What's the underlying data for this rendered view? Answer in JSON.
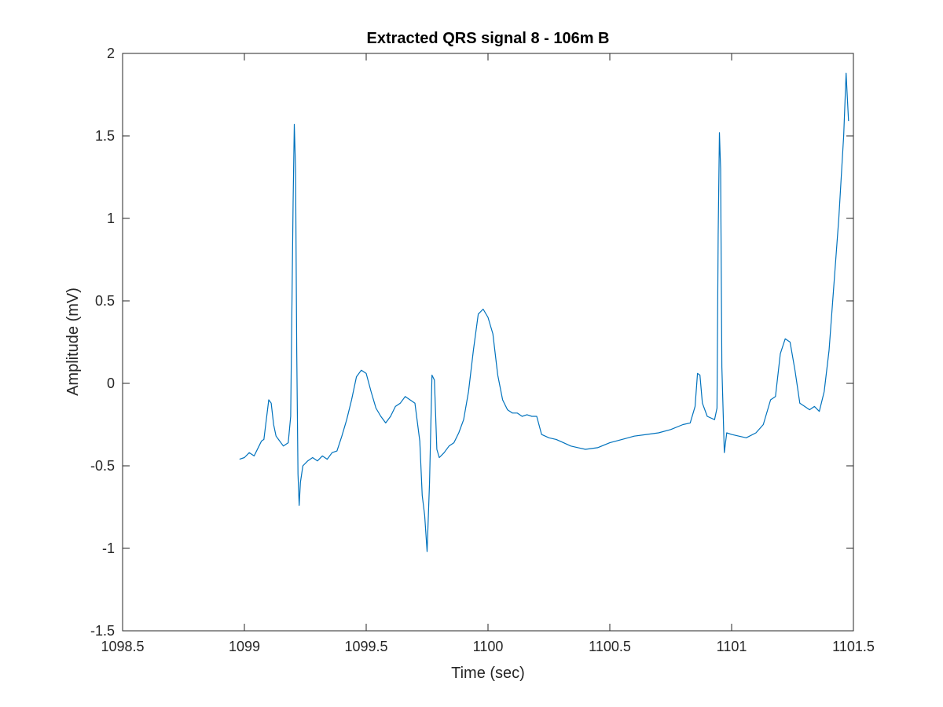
{
  "chart_data": {
    "type": "line",
    "title": "Extracted QRS signal 8 - 106m B",
    "xlabel": "Time (sec)",
    "ylabel": "Amplitude (mV)",
    "xlim": [
      1098.5,
      1101.5
    ],
    "ylim": [
      -1.5,
      2
    ],
    "xticks": [
      1098.5,
      1099,
      1099.5,
      1100,
      1100.5,
      1101,
      1101.5
    ],
    "xtick_labels": [
      "1098.5",
      "1099",
      "1099.5",
      "1100",
      "1100.5",
      "1101",
      "1101.5"
    ],
    "yticks": [
      -1.5,
      -1,
      -0.5,
      0,
      0.5,
      1,
      1.5,
      2
    ],
    "ytick_labels": [
      "-1.5",
      "-1",
      "-0.5",
      "0",
      "0.5",
      "1",
      "1.5",
      "2"
    ],
    "grid": false,
    "box": true,
    "series": [
      {
        "color": "#0072BD",
        "x": [
          1098.98,
          1099.0,
          1099.02,
          1099.04,
          1099.06,
          1099.07,
          1099.08,
          1099.09,
          1099.1,
          1099.11,
          1099.12,
          1099.13,
          1099.14,
          1099.16,
          1099.18,
          1099.19,
          1099.2,
          1099.205,
          1099.21,
          1099.215,
          1099.22,
          1099.225,
          1099.23,
          1099.24,
          1099.26,
          1099.28,
          1099.3,
          1099.32,
          1099.34,
          1099.36,
          1099.38,
          1099.4,
          1099.42,
          1099.44,
          1099.46,
          1099.48,
          1099.5,
          1099.52,
          1099.54,
          1099.56,
          1099.58,
          1099.6,
          1099.62,
          1099.64,
          1099.66,
          1099.68,
          1099.7,
          1099.72,
          1099.73,
          1099.74,
          1099.75,
          1099.76,
          1099.77,
          1099.78,
          1099.79,
          1099.8,
          1099.82,
          1099.84,
          1099.86,
          1099.88,
          1099.9,
          1099.92,
          1099.94,
          1099.96,
          1099.98,
          1100.0,
          1100.02,
          1100.04,
          1100.06,
          1100.08,
          1100.1,
          1100.12,
          1100.14,
          1100.16,
          1100.18,
          1100.2,
          1100.22,
          1100.25,
          1100.28,
          1100.31,
          1100.34,
          1100.37,
          1100.4,
          1100.45,
          1100.5,
          1100.55,
          1100.6,
          1100.65,
          1100.7,
          1100.75,
          1100.8,
          1100.83,
          1100.85,
          1100.86,
          1100.87,
          1100.88,
          1100.9,
          1100.93,
          1100.94,
          1100.945,
          1100.95,
          1100.955,
          1100.96,
          1100.97,
          1100.98,
          1101.0,
          1101.03,
          1101.06,
          1101.1,
          1101.13,
          1101.16,
          1101.18,
          1101.2,
          1101.22,
          1101.24,
          1101.26,
          1101.28,
          1101.3,
          1101.32,
          1101.34,
          1101.36,
          1101.38,
          1101.4,
          1101.42,
          1101.44,
          1101.46,
          1101.47,
          1101.48
        ],
        "y": [
          -0.46,
          -0.45,
          -0.42,
          -0.44,
          -0.38,
          -0.35,
          -0.34,
          -0.22,
          -0.1,
          -0.12,
          -0.25,
          -0.32,
          -0.34,
          -0.38,
          -0.36,
          -0.2,
          1.1,
          1.57,
          1.3,
          0.2,
          -0.55,
          -0.74,
          -0.6,
          -0.5,
          -0.47,
          -0.45,
          -0.47,
          -0.44,
          -0.46,
          -0.42,
          -0.41,
          -0.32,
          -0.22,
          -0.1,
          0.04,
          0.08,
          0.06,
          -0.05,
          -0.15,
          -0.2,
          -0.24,
          -0.2,
          -0.14,
          -0.12,
          -0.08,
          -0.1,
          -0.12,
          -0.35,
          -0.68,
          -0.8,
          -1.02,
          -0.6,
          0.05,
          0.02,
          -0.4,
          -0.45,
          -0.42,
          -0.38,
          -0.36,
          -0.3,
          -0.22,
          -0.05,
          0.2,
          0.42,
          0.45,
          0.4,
          0.3,
          0.05,
          -0.1,
          -0.16,
          -0.18,
          -0.18,
          -0.2,
          -0.19,
          -0.2,
          -0.2,
          -0.31,
          -0.33,
          -0.34,
          -0.36,
          -0.38,
          -0.39,
          -0.4,
          -0.39,
          -0.36,
          -0.34,
          -0.32,
          -0.31,
          -0.3,
          -0.28,
          -0.25,
          -0.24,
          -0.14,
          0.06,
          0.05,
          -0.12,
          -0.2,
          -0.22,
          -0.15,
          0.9,
          1.52,
          1.3,
          0.1,
          -0.42,
          -0.3,
          -0.31,
          -0.32,
          -0.33,
          -0.3,
          -0.25,
          -0.1,
          -0.08,
          0.18,
          0.27,
          0.25,
          0.08,
          -0.12,
          -0.14,
          -0.16,
          -0.14,
          -0.17,
          -0.05,
          0.2,
          0.6,
          1.0,
          1.5,
          1.88,
          1.59
        ]
      }
    ]
  }
}
